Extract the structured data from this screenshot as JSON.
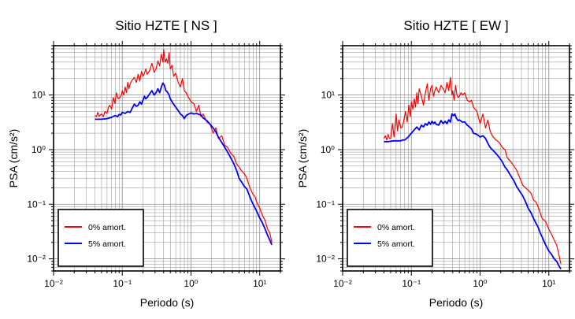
{
  "colors": {
    "undamped": "#ff0000",
    "damped": "#0000ff",
    "grid": "#8c8c8c",
    "frame": "#000000"
  },
  "chart_data": [
    {
      "type": "line",
      "title": "Sitio HZTE [ NS ]",
      "xlabel": "Periodo (s)",
      "ylabel": "PSA (cm/s²)",
      "xscale": "log",
      "yscale": "log",
      "xlim": [
        0.01,
        20
      ],
      "ylim": [
        0.006,
        80
      ],
      "xticks": [
        {
          "value": 0.01,
          "label": "10⁻²"
        },
        {
          "value": 0.1,
          "label": "10⁻¹"
        },
        {
          "value": 1,
          "label": "10⁰"
        },
        {
          "value": 10,
          "label": "10¹"
        }
      ],
      "yticks": [
        {
          "value": 0.01,
          "label": "10⁻²"
        },
        {
          "value": 0.1,
          "label": "10⁻¹"
        },
        {
          "value": 1,
          "label": "10⁰"
        },
        {
          "value": 10,
          "label": "10¹"
        }
      ],
      "grid": true,
      "legend_position": "bottom-left",
      "series": [
        {
          "name": "0% amort.",
          "color": "#ff0000",
          "x": [
            0.04,
            0.042,
            0.044,
            0.046,
            0.048,
            0.05,
            0.053,
            0.056,
            0.06,
            0.063,
            0.066,
            0.07,
            0.074,
            0.078,
            0.082,
            0.087,
            0.092,
            0.097,
            0.1,
            0.105,
            0.11,
            0.115,
            0.12,
            0.125,
            0.13,
            0.14,
            0.15,
            0.16,
            0.17,
            0.18,
            0.19,
            0.2,
            0.21,
            0.22,
            0.23,
            0.25,
            0.27,
            0.29,
            0.31,
            0.33,
            0.35,
            0.37,
            0.39,
            0.4,
            0.42,
            0.44,
            0.46,
            0.48,
            0.5,
            0.53,
            0.56,
            0.6,
            0.65,
            0.7,
            0.75,
            0.8,
            0.85,
            0.9,
            1.0,
            1.1,
            1.2,
            1.3,
            1.4,
            1.5,
            1.7,
            1.9,
            2.1,
            2.3,
            2.5,
            2.8,
            3.1,
            3.4,
            3.8,
            4.2,
            4.6,
            5.0,
            5.5,
            6.0,
            6.5,
            7.0,
            7.5,
            8.0,
            8.5,
            9.0,
            10,
            11,
            12,
            13,
            14,
            15
          ],
          "y": [
            4.2,
            4.0,
            4.8,
            4.1,
            4.3,
            4.5,
            4.0,
            5.0,
            4.6,
            6.0,
            6.5,
            5.5,
            9.0,
            7.0,
            11,
            8.5,
            9,
            10,
            12,
            10,
            14,
            11,
            17,
            13,
            16,
            19,
            21,
            17,
            24,
            18,
            27,
            22,
            25,
            30,
            24,
            28,
            38,
            26,
            30,
            42,
            34,
            56,
            40,
            68,
            40,
            46,
            38,
            60,
            30,
            35,
            22,
            25,
            17,
            14,
            20,
            12,
            11,
            9.5,
            7.5,
            7.0,
            5.0,
            6.5,
            4.0,
            4.5,
            3.2,
            2.9,
            2.0,
            2.5,
            1.6,
            1.8,
            1.2,
            1.1,
            0.85,
            0.75,
            0.55,
            0.48,
            0.4,
            0.36,
            0.3,
            0.22,
            0.18,
            0.15,
            0.14,
            0.11,
            0.085,
            0.062,
            0.05,
            0.035,
            0.03,
            0.02
          ]
        },
        {
          "name": "5% amort.",
          "color": "#0000ff",
          "x": [
            0.04,
            0.045,
            0.05,
            0.055,
            0.06,
            0.065,
            0.07,
            0.075,
            0.08,
            0.085,
            0.09,
            0.095,
            0.1,
            0.11,
            0.12,
            0.13,
            0.14,
            0.15,
            0.16,
            0.17,
            0.18,
            0.19,
            0.2,
            0.21,
            0.22,
            0.23,
            0.25,
            0.27,
            0.29,
            0.31,
            0.33,
            0.35,
            0.37,
            0.39,
            0.41,
            0.43,
            0.45,
            0.48,
            0.5,
            0.55,
            0.6,
            0.65,
            0.7,
            0.75,
            0.8,
            0.85,
            0.9,
            1.0,
            1.1,
            1.2,
            1.3,
            1.4,
            1.5,
            1.7,
            1.9,
            2.1,
            2.3,
            2.5,
            2.8,
            3.1,
            3.4,
            3.8,
            4.2,
            4.6,
            5.0,
            5.5,
            6.0,
            6.5,
            7.0,
            7.5,
            8.0,
            9.0,
            10,
            11,
            12,
            13,
            14,
            15
          ],
          "y": [
            3.6,
            3.6,
            3.6,
            3.65,
            3.7,
            3.8,
            3.9,
            4.1,
            4.2,
            4.0,
            4.4,
            4.3,
            4.8,
            4.6,
            5.0,
            4.8,
            5.8,
            6.8,
            6.2,
            6.5,
            7.5,
            6.8,
            8.0,
            9.5,
            8.5,
            9.0,
            10.5,
            12,
            10,
            11,
            13,
            11,
            14,
            16.5,
            15,
            12,
            11.5,
            10,
            8.5,
            7,
            6.0,
            5.2,
            4.5,
            4.2,
            3.7,
            4.2,
            4.4,
            4.7,
            4.5,
            4.6,
            4.4,
            4.3,
            3.8,
            3.4,
            2.9,
            2.5,
            2.1,
            1.7,
            1.35,
            1.1,
            0.9,
            0.7,
            0.55,
            0.42,
            0.3,
            0.25,
            0.21,
            0.19,
            0.15,
            0.12,
            0.1,
            0.075,
            0.056,
            0.045,
            0.035,
            0.027,
            0.022,
            0.018
          ]
        }
      ]
    },
    {
      "type": "line",
      "title": "Sitio HZTE [ EW ]",
      "xlabel": "Periodo (s)",
      "ylabel": "PSA (cm/s²)",
      "xscale": "log",
      "yscale": "log",
      "xlim": [
        0.01,
        20
      ],
      "ylim": [
        0.006,
        80
      ],
      "xticks": [
        {
          "value": 0.01,
          "label": "10⁻²"
        },
        {
          "value": 0.1,
          "label": "10⁻¹"
        },
        {
          "value": 1,
          "label": "10⁰"
        },
        {
          "value": 10,
          "label": "10¹"
        }
      ],
      "yticks": [
        {
          "value": 0.01,
          "label": "10⁻²"
        },
        {
          "value": 0.1,
          "label": "10⁻¹"
        },
        {
          "value": 1,
          "label": "10⁰"
        },
        {
          "value": 10,
          "label": "10¹"
        }
      ],
      "grid": true,
      "legend_position": "bottom-left",
      "series": [
        {
          "name": "0% amort.",
          "color": "#ff0000",
          "x": [
            0.04,
            0.042,
            0.044,
            0.046,
            0.048,
            0.05,
            0.053,
            0.056,
            0.06,
            0.063,
            0.066,
            0.07,
            0.074,
            0.078,
            0.082,
            0.087,
            0.092,
            0.097,
            0.1,
            0.105,
            0.11,
            0.115,
            0.12,
            0.125,
            0.13,
            0.14,
            0.15,
            0.16,
            0.17,
            0.18,
            0.19,
            0.2,
            0.21,
            0.22,
            0.23,
            0.25,
            0.27,
            0.29,
            0.31,
            0.33,
            0.35,
            0.37,
            0.39,
            0.4,
            0.42,
            0.44,
            0.46,
            0.48,
            0.5,
            0.53,
            0.56,
            0.6,
            0.65,
            0.7,
            0.75,
            0.8,
            0.85,
            0.9,
            1.0,
            1.1,
            1.2,
            1.3,
            1.4,
            1.5,
            1.7,
            1.9,
            2.1,
            2.3,
            2.5,
            2.8,
            3.1,
            3.4,
            3.8,
            4.2,
            4.6,
            5.0,
            5.5,
            6.0,
            6.5,
            7.0,
            7.5,
            8.0,
            9.0,
            10,
            11,
            12,
            13,
            14,
            15
          ],
          "y": [
            1.6,
            1.8,
            1.5,
            1.9,
            1.6,
            1.6,
            3.0,
            1.7,
            4.5,
            2.2,
            3.5,
            2.5,
            2.6,
            3.5,
            5.0,
            3.2,
            6.5,
            4.0,
            7.5,
            5.5,
            8.5,
            6.0,
            11,
            7.0,
            13,
            9.5,
            6.5,
            11,
            16,
            8.0,
            13,
            15,
            9.5,
            12,
            14,
            11,
            15,
            13,
            11,
            17,
            12,
            21,
            10,
            12,
            8,
            15,
            10,
            9,
            9.5,
            11,
            10,
            11,
            8,
            7.5,
            8.0,
            6.0,
            5.5,
            5.0,
            3.0,
            4.5,
            2.5,
            3.5,
            2.2,
            1.8,
            1.5,
            1.35,
            1.1,
            1.0,
            0.7,
            0.6,
            0.5,
            0.42,
            0.3,
            0.22,
            0.2,
            0.18,
            0.16,
            0.12,
            0.11,
            0.09,
            0.07,
            0.055,
            0.048,
            0.035,
            0.028,
            0.022,
            0.018,
            0.012,
            0.008
          ]
        },
        {
          "name": "5% amort.",
          "color": "#0000ff",
          "x": [
            0.04,
            0.045,
            0.05,
            0.055,
            0.06,
            0.065,
            0.07,
            0.075,
            0.08,
            0.085,
            0.09,
            0.095,
            0.1,
            0.11,
            0.12,
            0.13,
            0.14,
            0.15,
            0.16,
            0.17,
            0.18,
            0.19,
            0.2,
            0.21,
            0.22,
            0.23,
            0.25,
            0.27,
            0.29,
            0.31,
            0.33,
            0.35,
            0.37,
            0.39,
            0.41,
            0.43,
            0.45,
            0.48,
            0.5,
            0.55,
            0.6,
            0.65,
            0.7,
            0.75,
            0.8,
            0.85,
            0.9,
            1.0,
            1.1,
            1.2,
            1.3,
            1.4,
            1.5,
            1.7,
            1.9,
            2.1,
            2.3,
            2.5,
            2.8,
            3.1,
            3.4,
            3.8,
            4.2,
            4.6,
            5.0,
            5.5,
            6.0,
            6.5,
            7.0,
            7.5,
            8.0,
            9.0,
            10,
            11,
            12,
            13,
            14,
            15
          ],
          "y": [
            1.4,
            1.4,
            1.42,
            1.45,
            1.45,
            1.45,
            1.45,
            1.5,
            1.5,
            1.6,
            1.7,
            1.85,
            2.0,
            2.3,
            2.6,
            2.3,
            2.8,
            2.6,
            3.0,
            2.8,
            3.2,
            2.9,
            3.3,
            3.0,
            3.2,
            2.9,
            2.8,
            3.4,
            3.0,
            3.3,
            3.0,
            3.5,
            3.2,
            4.5,
            4.2,
            4.5,
            3.8,
            3.4,
            3.5,
            3.2,
            3.2,
            2.8,
            2.6,
            2.4,
            2.0,
            1.95,
            1.9,
            1.7,
            1.8,
            1.6,
            1.3,
            1.1,
            1.0,
            0.85,
            0.72,
            0.6,
            0.48,
            0.42,
            0.33,
            0.27,
            0.21,
            0.17,
            0.14,
            0.11,
            0.085,
            0.07,
            0.055,
            0.045,
            0.038,
            0.03,
            0.025,
            0.018,
            0.014,
            0.012,
            0.01,
            0.009,
            0.0075,
            0.0065
          ]
        }
      ]
    }
  ]
}
